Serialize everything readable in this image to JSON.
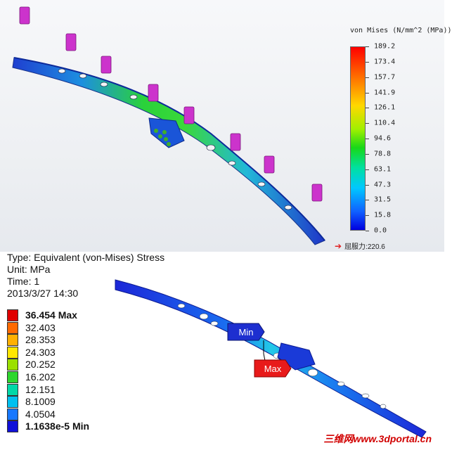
{
  "solidworks_result": {
    "legend_title": "von Mises (N/mm^2 (MPa))",
    "scale_values": [
      "189.2",
      "173.4",
      "157.7",
      "141.9",
      "126.1",
      "110.4",
      "94.6",
      "78.8",
      "63.1",
      "47.3",
      "31.5",
      "15.8",
      "0.0"
    ],
    "yield_label": "屈服力:220.6",
    "colors": {
      "max": "#ff0000",
      "min": "#0000e0",
      "beam_mid": "#18c818",
      "fixture": "#cc33cc",
      "fixture_ground": "#3fae2a"
    }
  },
  "ansys_result": {
    "type_line": "Type: Equivalent (von-Mises) Stress",
    "unit_line": "Unit: MPa",
    "time_line": "Time: 1",
    "date_line": "2013/3/27 14:30",
    "legend": [
      {
        "label": "36.454 Max",
        "color": "#e00000"
      },
      {
        "label": "32.403",
        "color": "#ff6a00"
      },
      {
        "label": "28.353",
        "color": "#ffb000"
      },
      {
        "label": "24.303",
        "color": "#ffe600"
      },
      {
        "label": "20.252",
        "color": "#9be000"
      },
      {
        "label": "16.202",
        "color": "#2ed62e"
      },
      {
        "label": "12.151",
        "color": "#00d8a8"
      },
      {
        "label": "8.1009",
        "color": "#00c0f0"
      },
      {
        "label": "4.0504",
        "color": "#1878ff"
      },
      {
        "label": "1.1638e-5 Min",
        "color": "#1010d8"
      }
    ],
    "min_tag": "Min",
    "max_tag": "Max",
    "colors": {
      "min_tag": "#1d2fd0",
      "max_tag": "#e81a1a"
    }
  },
  "watermark": "三维网www.3dportal.cn"
}
